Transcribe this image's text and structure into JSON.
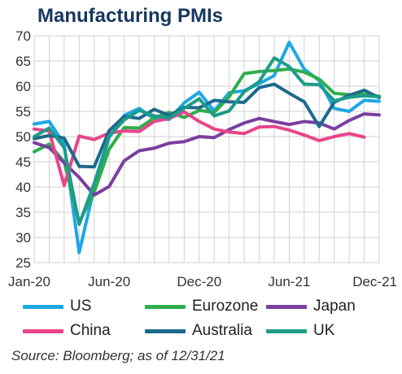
{
  "chart_data": {
    "type": "line",
    "title": "Manufacturing PMIs",
    "source": "Source: Bloomberg;  as of 12/31/21",
    "x": [
      "Jan-20",
      "Feb-20",
      "Mar-20",
      "Apr-20",
      "May-20",
      "Jun-20",
      "Jul-20",
      "Aug-20",
      "Sep-20",
      "Oct-20",
      "Nov-20",
      "Dec-20",
      "Jan-21",
      "Feb-21",
      "Mar-21",
      "Apr-21",
      "May-21",
      "Jun-21",
      "Jul-21",
      "Aug-21",
      "Sep-21",
      "Oct-21",
      "Nov-21",
      "Dec-21"
    ],
    "x_tick_labels": [
      "Jan-20",
      "Jun-20",
      "Dec-20",
      "Jun-21",
      "Dec-21"
    ],
    "ylim": [
      25,
      70
    ],
    "y_ticks": [
      25,
      30,
      35,
      40,
      45,
      50,
      55,
      60,
      65,
      70
    ],
    "grid": true,
    "legend_position": "bottom",
    "series": [
      {
        "name": "US",
        "color": "#1ea7e4",
        "values": [
          52.5,
          53.0,
          48.5,
          27.0,
          39.8,
          49.8,
          54.2,
          55.6,
          53.5,
          53.4,
          56.7,
          58.8,
          55.1,
          58.7,
          59.1,
          60.5,
          62.1,
          68.7,
          63.4,
          61.1,
          55.6,
          55.0,
          57.2,
          57.0
        ]
      },
      {
        "name": "Eurozone",
        "color": "#2eae4a",
        "values": [
          47.0,
          48.5,
          45.0,
          33.0,
          39.0,
          47.5,
          51.8,
          51.7,
          53.7,
          54.8,
          53.8,
          55.2,
          54.8,
          57.9,
          62.5,
          62.9,
          63.1,
          63.4,
          62.8,
          61.4,
          58.6,
          58.3,
          58.4,
          58.0
        ]
      },
      {
        "name": "Japan",
        "color": "#7b3fa0",
        "values": [
          48.8,
          47.8,
          44.8,
          41.9,
          38.4,
          40.1,
          45.2,
          47.2,
          47.7,
          48.7,
          49.0,
          50.0,
          49.8,
          51.4,
          52.7,
          53.6,
          53.0,
          52.4,
          53.0,
          52.7,
          51.5,
          53.2,
          54.5,
          54.3
        ]
      },
      {
        "name": "China",
        "color": "#e8458b",
        "values": [
          51.5,
          51.1,
          40.3,
          50.1,
          49.4,
          50.7,
          51.1,
          51.0,
          53.0,
          53.6,
          54.9,
          53.0,
          51.5,
          50.9,
          50.6,
          51.9,
          52.0,
          51.3,
          50.3,
          49.2,
          50.0,
          50.6,
          49.9,
          null
        ]
      },
      {
        "name": "Australia",
        "color": "#1d6a8c",
        "values": [
          49.6,
          50.2,
          49.7,
          44.1,
          44.0,
          51.2,
          54.0,
          53.6,
          55.4,
          54.2,
          55.8,
          55.7,
          57.2,
          56.9,
          56.8,
          59.7,
          60.4,
          58.6,
          56.9,
          52.0,
          56.8,
          58.2,
          59.2,
          57.7
        ]
      },
      {
        "name": "UK",
        "color": "#1d9c8a",
        "values": [
          50.0,
          51.7,
          47.8,
          32.6,
          40.7,
          50.1,
          53.3,
          55.2,
          54.1,
          53.7,
          55.6,
          57.5,
          54.1,
          55.1,
          58.9,
          60.9,
          65.6,
          63.9,
          60.4,
          60.3,
          57.1,
          57.8,
          58.1,
          57.9
        ]
      }
    ]
  }
}
